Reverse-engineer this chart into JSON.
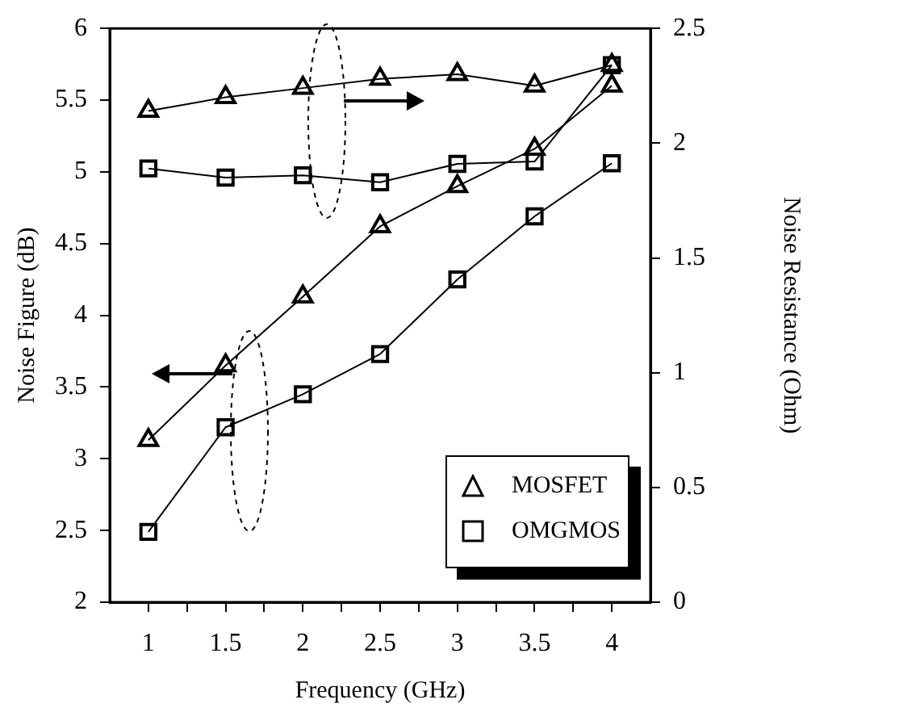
{
  "chart_data": {
    "type": "line",
    "xlabel": "Frequency (GHz)",
    "ylabel": "Noise Figure (dB)",
    "y2label": "Noise Resistance (Ohm)",
    "x": [
      1,
      1.5,
      2,
      2.5,
      3,
      3.5,
      4
    ],
    "series": [
      {
        "name": "MOSFET",
        "color": "#000000",
        "marker": "triangle",
        "values": [
          3.13,
          3.65,
          4.13,
          4.62,
          4.9,
          5.16,
          5.6
        ]
      },
      {
        "name": "OMGMOS",
        "color": "#000000",
        "marker": "square",
        "values": [
          2.49,
          3.22,
          3.45,
          3.73,
          4.25,
          4.69,
          5.06
        ]
      },
      {
        "color": "#000000",
        "marker": "triangle",
        "axis": "y2",
        "values": [
          2.14,
          2.2,
          2.24,
          2.28,
          2.3,
          2.25,
          2.34
        ]
      },
      {
        "color": "#000000",
        "marker": "square",
        "axis": "y2",
        "values": [
          1.89,
          1.85,
          1.86,
          1.83,
          1.91,
          1.92,
          2.34
        ]
      }
    ],
    "xlim": [
      0.75,
      4.25
    ],
    "xticks": [
      1,
      {
        "value": 1.25,
        "label": null
      },
      1.5,
      {
        "value": 1.75,
        "label": null
      },
      2,
      {
        "value": 2.25,
        "label": null
      },
      2.5,
      {
        "value": 2.75,
        "label": null
      },
      3,
      {
        "value": 3.25,
        "label": null
      },
      3.5,
      {
        "value": 3.75,
        "label": null
      },
      4
    ],
    "ylim": [
      2,
      6
    ],
    "yticks": [
      2,
      2.5,
      3,
      3.5,
      4,
      4.5,
      5,
      5.5,
      6
    ],
    "y2lim": [
      0,
      2.5
    ],
    "y2ticks": [
      0,
      0.5,
      1,
      1.5,
      2,
      2.5
    ],
    "grid": false,
    "legend": "bottom right",
    "line_style": "solid"
  }
}
